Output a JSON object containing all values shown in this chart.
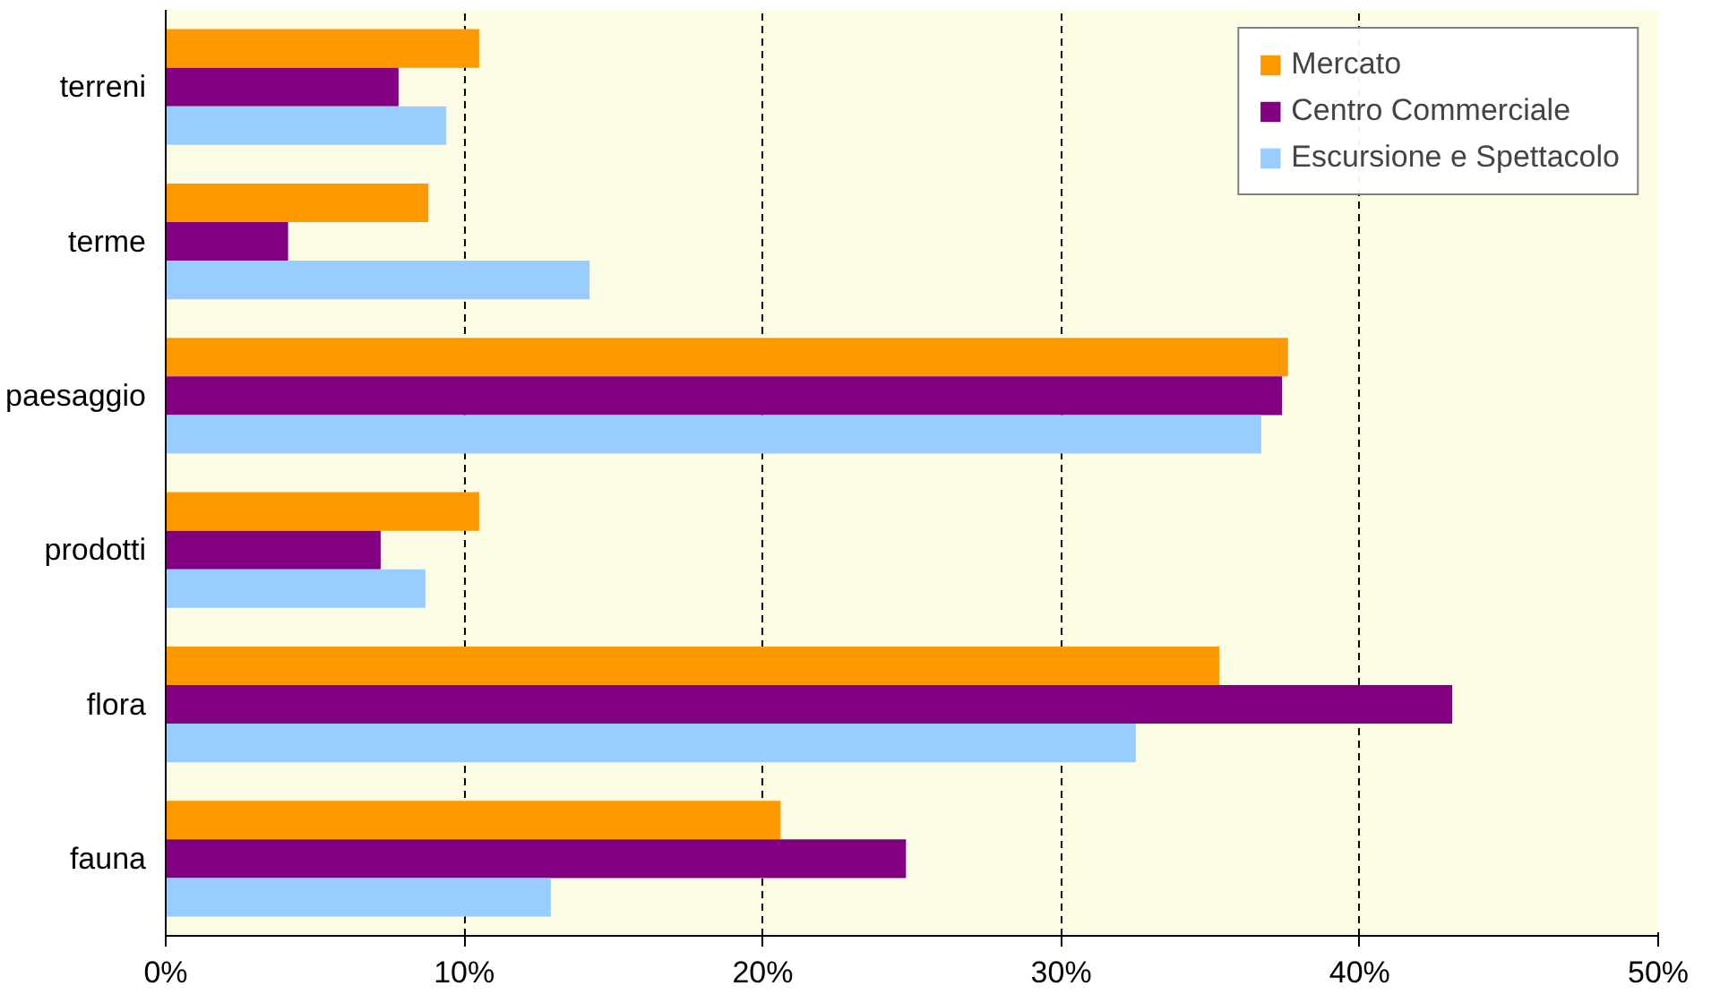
{
  "chart_data": {
    "type": "bar",
    "orientation": "horizontal",
    "categories": [
      "terreni",
      "terme",
      "paesaggio",
      "prodotti",
      "flora",
      "fauna"
    ],
    "series": [
      {
        "name": "Mercato",
        "color": "#ff9900",
        "values": [
          10.5,
          8.8,
          37.6,
          10.5,
          35.3,
          20.6
        ]
      },
      {
        "name": "Centro Commerciale",
        "color": "#800080",
        "values": [
          7.8,
          4.1,
          37.4,
          7.2,
          43.1,
          24.8
        ]
      },
      {
        "name": "Escursione e Spettacolo",
        "color": "#99ccff",
        "values": [
          9.4,
          14.2,
          36.7,
          8.7,
          32.5,
          12.9
        ]
      }
    ],
    "xlim": [
      0,
      50
    ],
    "xticks": [
      {
        "value": 0,
        "label": "0%"
      },
      {
        "value": 10,
        "label": "10%"
      },
      {
        "value": 20,
        "label": "20%"
      },
      {
        "value": 30,
        "label": "30%"
      },
      {
        "value": 40,
        "label": "40%"
      },
      {
        "value": 50,
        "label": "50%"
      }
    ],
    "grid": "x",
    "legend": "top right"
  }
}
